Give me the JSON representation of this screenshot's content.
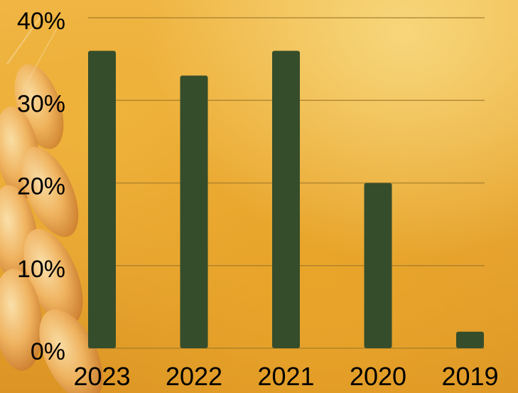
{
  "chart_data": {
    "type": "bar",
    "categories": [
      "2023",
      "2022",
      "2021",
      "2020",
      "2019"
    ],
    "values": [
      36,
      33,
      36,
      20,
      2
    ],
    "y_ticks": [
      "0%",
      "10%",
      "20%",
      "30%",
      "40%"
    ],
    "ylim": [
      0,
      40
    ],
    "y_unit": "%",
    "grid": true,
    "legend": "none",
    "colors": {
      "bar": "#354d2b",
      "gridline": "#a0782a",
      "text": "#000000"
    }
  }
}
